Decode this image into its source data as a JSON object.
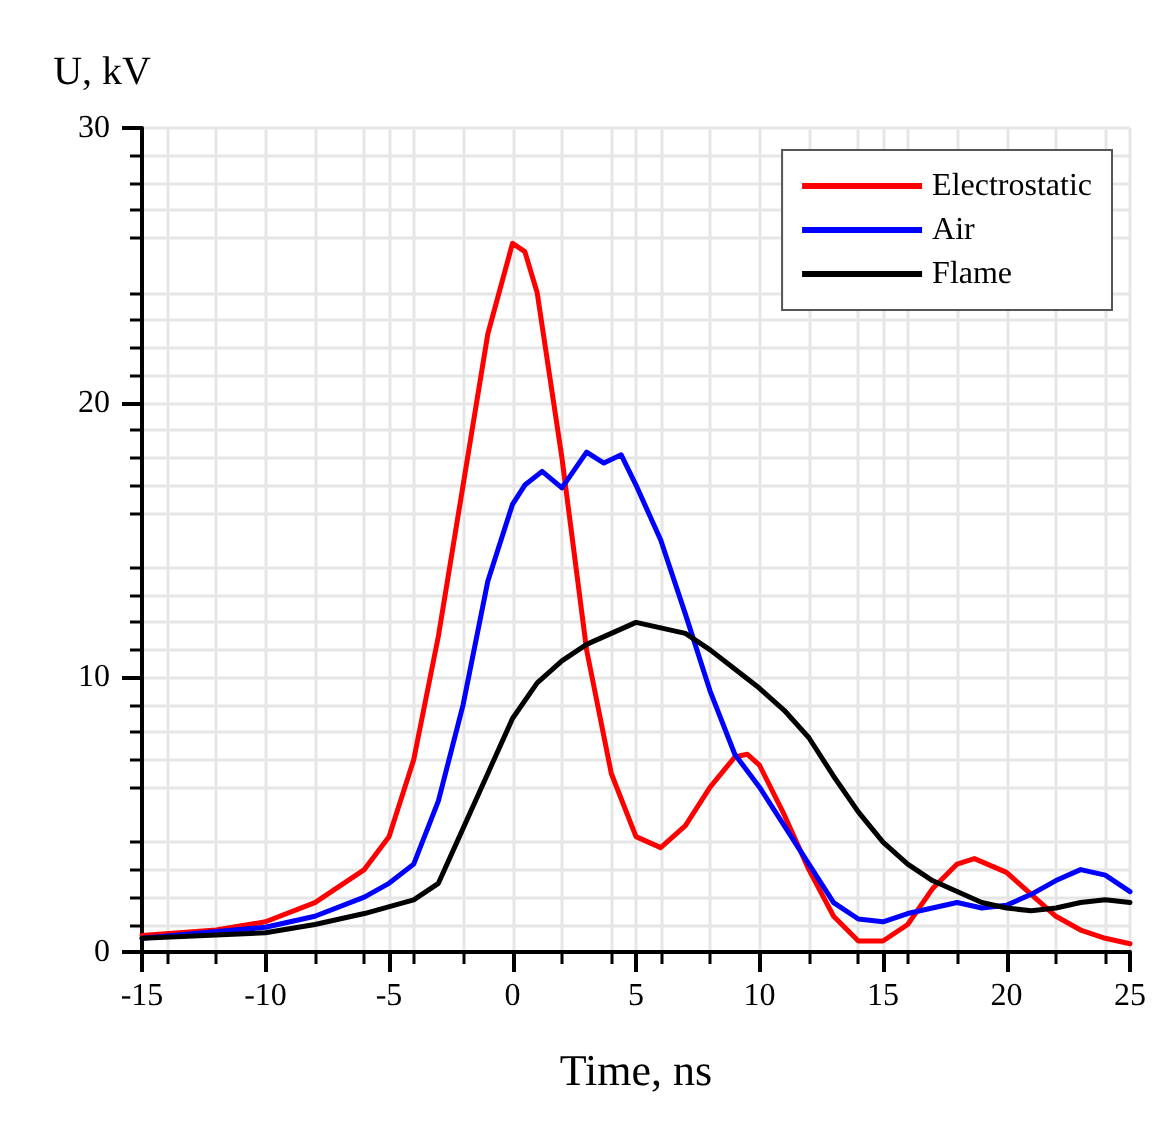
{
  "chart_data": {
    "type": "line",
    "xlabel": "Time, ns",
    "ylabel": "U, kV",
    "xlim": [
      -15,
      25
    ],
    "xticks": [
      -15,
      -10,
      -5,
      0,
      5,
      10,
      15,
      20,
      25
    ],
    "ylim": [
      0,
      30
    ],
    "yticks": [
      0,
      10,
      20,
      30
    ],
    "grid": true,
    "legend": "top right",
    "line_style": "solid",
    "marker": "none",
    "series": [
      {
        "name": "Electrostatic",
        "color": "#ff0000",
        "x": [
          -15,
          -12,
          -10,
          -8,
          -6,
          -5,
          -4,
          -3,
          -2,
          -1,
          0,
          0.5,
          1,
          2,
          3,
          4,
          5,
          6,
          7,
          8,
          9,
          9.5,
          10,
          11,
          12,
          13,
          14,
          15,
          16,
          17,
          18,
          18.7,
          20,
          21,
          22,
          23,
          24,
          25
        ],
        "values": [
          0.6,
          0.8,
          1.1,
          1.8,
          3.0,
          4.2,
          7,
          11.5,
          17,
          22.5,
          25.8,
          25.5,
          24,
          18,
          11,
          6.5,
          4.2,
          3.8,
          4.6,
          6,
          7.1,
          7.2,
          6.8,
          5,
          3,
          1.3,
          0.4,
          0.4,
          1.0,
          2.3,
          3.2,
          3.4,
          2.9,
          2.1,
          1.3,
          0.8,
          0.5,
          0.3
        ]
      },
      {
        "name": "Air",
        "color": "#0000ff",
        "x": [
          -15,
          -10,
          -8,
          -6,
          -5,
          -4,
          -3,
          -2,
          -1,
          0,
          0.5,
          1.2,
          2,
          3,
          3.7,
          4.4,
          5,
          6,
          7,
          8,
          9,
          10,
          11,
          12,
          13,
          14,
          15,
          16,
          17,
          18,
          19,
          20,
          21,
          22,
          23,
          24,
          25
        ],
        "values": [
          0.5,
          0.9,
          1.3,
          2.0,
          2.5,
          3.2,
          5.5,
          9,
          13.5,
          16.3,
          17,
          17.5,
          16.9,
          18.2,
          17.8,
          18.1,
          17,
          15,
          12.3,
          9.5,
          7.2,
          6,
          4.6,
          3.2,
          1.8,
          1.2,
          1.1,
          1.4,
          1.6,
          1.8,
          1.6,
          1.7,
          2.1,
          2.6,
          3.0,
          2.8,
          2.2
        ]
      },
      {
        "name": "Flame",
        "color": "#000000",
        "x": [
          -15,
          -10,
          -8,
          -6,
          -4,
          -3,
          -2,
          -1,
          0,
          1,
          2,
          3,
          4,
          5,
          6,
          7,
          8,
          9,
          10,
          11,
          12,
          13,
          14,
          15,
          16,
          17,
          18,
          19,
          20,
          21,
          22,
          23,
          24,
          25
        ],
        "values": [
          0.5,
          0.7,
          1.0,
          1.4,
          1.9,
          2.5,
          4.5,
          6.5,
          8.5,
          9.8,
          10.6,
          11.2,
          11.6,
          12.0,
          11.8,
          11.6,
          11.0,
          10.3,
          9.6,
          8.8,
          7.8,
          6.4,
          5.1,
          4.0,
          3.2,
          2.6,
          2.2,
          1.8,
          1.6,
          1.5,
          1.6,
          1.8,
          1.9,
          1.8
        ]
      }
    ]
  }
}
